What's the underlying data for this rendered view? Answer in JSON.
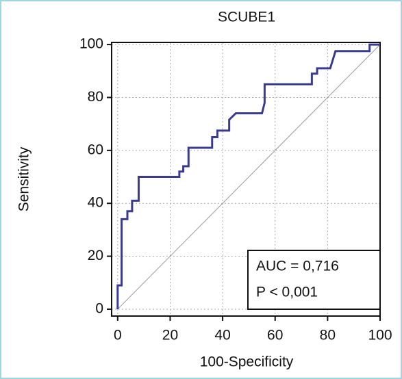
{
  "chart_data": {
    "type": "line",
    "title": "SCUBE1",
    "x_label": "100-Specificity",
    "y_label": "Sensitivity",
    "x": [
      0,
      0,
      1.5,
      1.5,
      3.7,
      3.7,
      5.5,
      5.5,
      8,
      8,
      23.5,
      23.5,
      25,
      25,
      27,
      27,
      36,
      36,
      38,
      38,
      42.5,
      42.5,
      45,
      55,
      56,
      56,
      74,
      74,
      76,
      76,
      81,
      83,
      96,
      96,
      100
    ],
    "series": [
      {
        "color": "#3b3b8e",
        "values": [
          0,
          9,
          9,
          34,
          34,
          37,
          37,
          41,
          41,
          50,
          50,
          52,
          52,
          54,
          54,
          61,
          61,
          65,
          65,
          67.5,
          67.5,
          71.6,
          74,
          74,
          78,
          85,
          85,
          89,
          89,
          91,
          91,
          97.5,
          97.5,
          100,
          100
        ]
      }
    ],
    "xlim": [
      -2.3,
      100
    ],
    "ylim": [
      -2.6,
      100.8
    ],
    "xticks": [
      0,
      20,
      40,
      60,
      80,
      100
    ],
    "yticks": [
      0,
      20,
      40,
      60,
      80,
      100
    ],
    "grid": true,
    "annotations": [
      "AUC = 0,716",
      "P < 0,001"
    ]
  }
}
